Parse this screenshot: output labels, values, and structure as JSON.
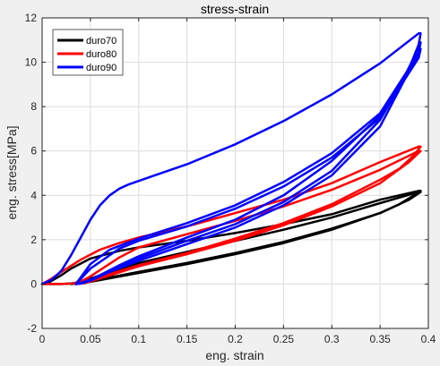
{
  "chart_data": {
    "type": "line",
    "title": "stress-strain",
    "xlabel": "eng. strain",
    "ylabel": "eng. stress[MPa]",
    "xlim": [
      0,
      0.4
    ],
    "ylim": [
      -2,
      12
    ],
    "xticks": [
      0,
      0.05,
      0.1,
      0.15,
      0.2,
      0.25,
      0.3,
      0.35,
      0.4
    ],
    "xtick_labels": [
      "0",
      "0.05",
      "0.1",
      "0.15",
      "0.2",
      "0.25",
      "0.3",
      "0.35",
      "0.4"
    ],
    "yticks": [
      -2,
      0,
      2,
      4,
      6,
      8,
      10,
      12
    ],
    "ytick_labels": [
      "-2",
      "0",
      "2",
      "4",
      "6",
      "8",
      "10",
      "12"
    ],
    "grid": true,
    "legend_position": "top-left",
    "series": [
      {
        "name": "duro70",
        "color": "#000000",
        "loops": [
          {
            "x": [
              0.0,
              0.005,
              0.01,
              0.02,
              0.03,
              0.05,
              0.08,
              0.1,
              0.15,
              0.2,
              0.25,
              0.3,
              0.35,
              0.39,
              0.392,
              0.385,
              0.37,
              0.35,
              0.3,
              0.25,
              0.2,
              0.15,
              0.1,
              0.07,
              0.05,
              0.04,
              0.03,
              0.02,
              0.01,
              0.0
            ],
            "y": [
              0.0,
              0.05,
              0.15,
              0.4,
              0.7,
              1.15,
              1.5,
              1.65,
              1.95,
              2.3,
              2.7,
              3.15,
              3.8,
              4.2,
              4.2,
              4.0,
              3.6,
              3.2,
              2.5,
              1.9,
              1.4,
              0.95,
              0.55,
              0.3,
              0.15,
              0.08,
              0.03,
              0.0,
              0.0,
              0.0
            ]
          },
          {
            "x": [
              0.03,
              0.05,
              0.1,
              0.15,
              0.2,
              0.25,
              0.3,
              0.35,
              0.39,
              0.392,
              0.38,
              0.35,
              0.3,
              0.25,
              0.2,
              0.15,
              0.1,
              0.05,
              0.035,
              0.03
            ],
            "y": [
              0.0,
              0.25,
              0.95,
              1.45,
              1.95,
              2.45,
              3.0,
              3.65,
              4.15,
              4.15,
              3.8,
              3.2,
              2.45,
              1.85,
              1.35,
              0.9,
              0.5,
              0.1,
              0.02,
              0.0
            ]
          }
        ]
      },
      {
        "name": "duro80",
        "color": "#ff0000",
        "loops": [
          {
            "x": [
              0.0,
              0.01,
              0.02,
              0.04,
              0.06,
              0.08,
              0.1,
              0.15,
              0.2,
              0.25,
              0.3,
              0.35,
              0.39,
              0.392,
              0.385,
              0.37,
              0.35,
              0.3,
              0.25,
              0.2,
              0.15,
              0.1,
              0.07,
              0.05,
              0.04,
              0.03,
              0.02,
              0.0
            ],
            "y": [
              0.0,
              0.25,
              0.55,
              1.1,
              1.55,
              1.85,
              2.1,
              2.6,
              3.2,
              3.8,
              4.55,
              5.5,
              6.2,
              6.2,
              5.8,
              5.2,
              4.7,
              3.6,
              2.75,
              2.05,
              1.4,
              0.85,
              0.45,
              0.2,
              0.08,
              0.02,
              0.0,
              0.0
            ]
          },
          {
            "x": [
              0.035,
              0.05,
              0.08,
              0.1,
              0.15,
              0.2,
              0.25,
              0.3,
              0.35,
              0.39,
              0.392,
              0.38,
              0.35,
              0.3,
              0.25,
              0.2,
              0.15,
              0.1,
              0.06,
              0.045,
              0.035
            ],
            "y": [
              0.0,
              0.35,
              1.2,
              1.65,
              2.25,
              2.85,
              3.5,
              4.25,
              5.15,
              6.0,
              6.0,
              5.5,
              4.55,
              3.5,
              2.65,
              1.95,
              1.35,
              0.8,
              0.25,
              0.05,
              0.0
            ]
          }
        ]
      },
      {
        "name": "duro90",
        "color": "#0000ff",
        "loops": [
          {
            "x": [
              0.0,
              0.01,
              0.02,
              0.03,
              0.04,
              0.05,
              0.06,
              0.07,
              0.08,
              0.09,
              0.1,
              0.12,
              0.15,
              0.2,
              0.25,
              0.3,
              0.35,
              0.39,
              0.392,
              0.39,
              0.38,
              0.36,
              0.35,
              0.3,
              0.25,
              0.2,
              0.15,
              0.1,
              0.08,
              0.06,
              0.05,
              0.045,
              0.04,
              0.035
            ],
            "y": [
              0.0,
              0.2,
              0.6,
              1.3,
              2.1,
              2.9,
              3.55,
              4.0,
              4.3,
              4.5,
              4.65,
              4.95,
              5.4,
              6.3,
              7.35,
              8.55,
              9.95,
              11.3,
              11.3,
              10.8,
              9.7,
              8.2,
              7.6,
              5.55,
              4.0,
              2.9,
              2.1,
              1.25,
              0.85,
              0.4,
              0.2,
              0.08,
              0.02,
              0.0
            ]
          },
          {
            "x": [
              0.035,
              0.04,
              0.05,
              0.07,
              0.1,
              0.15,
              0.2,
              0.25,
              0.3,
              0.35,
              0.39,
              0.392,
              0.385,
              0.37,
              0.35,
              0.3,
              0.25,
              0.2,
              0.15,
              0.1,
              0.08,
              0.06,
              0.05,
              0.04,
              0.035
            ],
            "y": [
              0.0,
              0.3,
              0.9,
              1.55,
              2.05,
              2.75,
              3.55,
              4.6,
              5.9,
              7.7,
              10.4,
              10.9,
              10.2,
              8.9,
              7.4,
              5.1,
              3.7,
              2.7,
              1.95,
              1.15,
              0.75,
              0.35,
              0.15,
              0.03,
              0.0
            ]
          },
          {
            "x": [
              0.035,
              0.05,
              0.08,
              0.1,
              0.15,
              0.2,
              0.25,
              0.3,
              0.35,
              0.39,
              0.392,
              0.38,
              0.35,
              0.3,
              0.25,
              0.2,
              0.15,
              0.1,
              0.07,
              0.05,
              0.04,
              0.035
            ],
            "y": [
              0.0,
              0.7,
              1.6,
              1.95,
              2.6,
              3.4,
              4.4,
              5.7,
              7.5,
              10.2,
              10.6,
              9.6,
              7.1,
              4.9,
              3.55,
              2.55,
              1.8,
              1.05,
              0.55,
              0.2,
              0.05,
              0.0
            ]
          }
        ]
      }
    ]
  }
}
